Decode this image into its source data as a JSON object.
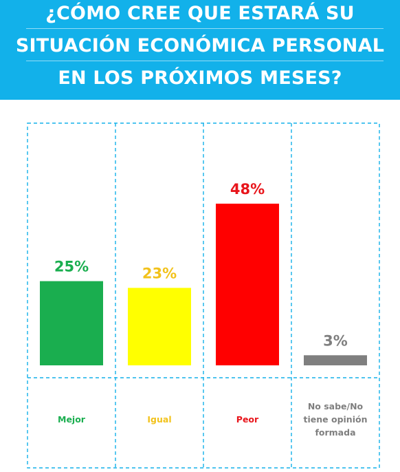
{
  "header": {
    "title_lines": [
      "¿CÓMO CREE QUE ESTARÁ SU",
      "SITUACIÓN ECONÓMICA PERSONAL",
      "EN LOS PRÓXIMOS MESES?"
    ],
    "background_color": "#12b1ea"
  },
  "chart_data": {
    "type": "bar",
    "title": "¿CÓMO CREE QUE ESTARÁ SU SITUACIÓN ECONÓMICA PERSONAL EN LOS PRÓXIMOS MESES?",
    "categories": [
      "Mejor",
      "Igual",
      "Peor",
      "No sabe/No tiene opinión formada"
    ],
    "category_label_lines": [
      [
        "Mejor"
      ],
      [
        "Igual"
      ],
      [
        "Peor"
      ],
      [
        "No sabe/No",
        "tiene opinión",
        "formada"
      ]
    ],
    "values": [
      25,
      23,
      48,
      3
    ],
    "data_labels": [
      "25%",
      "23%",
      "48%",
      "3%"
    ],
    "colors": [
      "#1aae4f",
      "#ffff00",
      "#ff0000",
      "#7f7f7f"
    ],
    "label_colors": [
      "#1aae4f",
      "#f2c21b",
      "#e8151b",
      "#7f7f7f"
    ],
    "ylim": [
      0,
      48
    ],
    "grid": false,
    "legend": "none",
    "divider_color": "#12b1ea"
  }
}
